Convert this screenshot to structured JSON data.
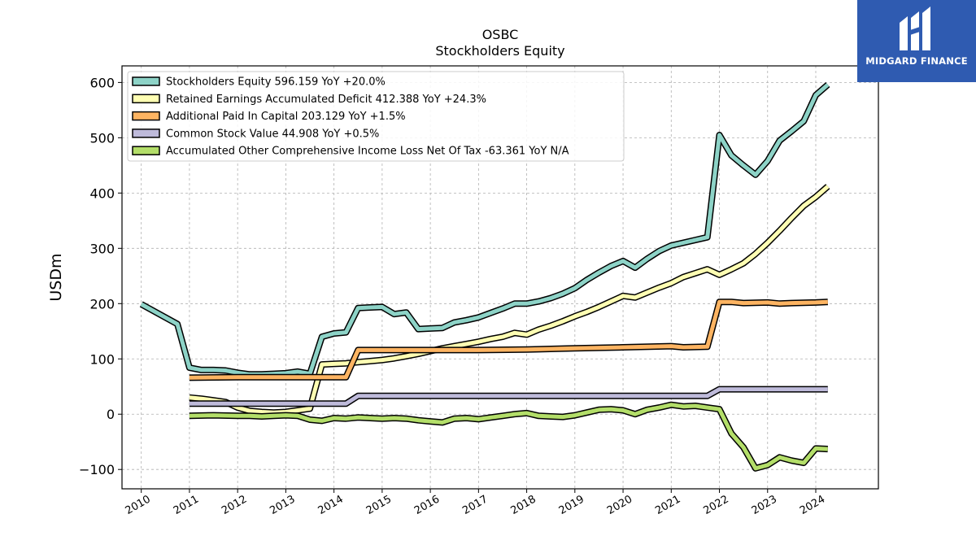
{
  "brand": {
    "name": "MIDGARD FINANCE",
    "bg_color": "#2f5bb1"
  },
  "chart_data": {
    "type": "line",
    "title": "OSBC",
    "subtitle": "Stockholders  Equity",
    "xlabel": "",
    "ylabel": "USDm",
    "xlim": [
      2009.6,
      2025.3
    ],
    "ylim": [
      -135,
      630
    ],
    "x_ticks": [
      "2010",
      "2011",
      "2012",
      "2013",
      "2014",
      "2015",
      "2016",
      "2017",
      "2018",
      "2019",
      "2020",
      "2021",
      "2022",
      "2023",
      "2024"
    ],
    "y_ticks": [
      -100,
      0,
      100,
      200,
      300,
      400,
      500,
      600
    ],
    "y_tick_labels": [
      "−100",
      "0",
      "100",
      "200",
      "300",
      "400",
      "500",
      "600"
    ],
    "grid": true,
    "legend_position": "upper-left",
    "series": [
      {
        "name": "Stockholders Equity  596.159 YoY +20.0%",
        "color": "#8dd3c7",
        "points": [
          [
            2010.0,
            199
          ],
          [
            2010.75,
            163
          ],
          [
            2011.0,
            84
          ],
          [
            2011.25,
            80
          ],
          [
            2011.5,
            80
          ],
          [
            2011.75,
            79
          ],
          [
            2012.0,
            75
          ],
          [
            2012.25,
            72
          ],
          [
            2012.5,
            72
          ],
          [
            2012.75,
            73
          ],
          [
            2013.0,
            74
          ],
          [
            2013.25,
            77
          ],
          [
            2013.5,
            73
          ],
          [
            2013.75,
            140
          ],
          [
            2014.0,
            146
          ],
          [
            2014.25,
            148
          ],
          [
            2014.5,
            192
          ],
          [
            2014.75,
            193
          ],
          [
            2015.0,
            194
          ],
          [
            2015.25,
            181
          ],
          [
            2015.5,
            184
          ],
          [
            2015.75,
            154
          ],
          [
            2016.0,
            155
          ],
          [
            2016.25,
            156
          ],
          [
            2016.5,
            166
          ],
          [
            2016.75,
            170
          ],
          [
            2017.0,
            175
          ],
          [
            2017.25,
            183
          ],
          [
            2017.5,
            191
          ],
          [
            2017.75,
            200
          ],
          [
            2018.0,
            200
          ],
          [
            2018.25,
            204
          ],
          [
            2018.5,
            210
          ],
          [
            2018.75,
            218
          ],
          [
            2019.0,
            228
          ],
          [
            2019.25,
            243
          ],
          [
            2019.5,
            256
          ],
          [
            2019.75,
            268
          ],
          [
            2020.0,
            277
          ],
          [
            2020.25,
            265
          ],
          [
            2020.5,
            281
          ],
          [
            2020.75,
            295
          ],
          [
            2021.0,
            305
          ],
          [
            2021.25,
            310
          ],
          [
            2021.5,
            315
          ],
          [
            2021.75,
            320
          ],
          [
            2022.0,
            505
          ],
          [
            2022.25,
            468
          ],
          [
            2022.5,
            450
          ],
          [
            2022.75,
            433
          ],
          [
            2023.0,
            458
          ],
          [
            2023.25,
            495
          ],
          [
            2023.5,
            512
          ],
          [
            2023.75,
            530
          ],
          [
            2024.0,
            577
          ],
          [
            2024.25,
            596
          ]
        ]
      },
      {
        "name": "Retained Earnings Accumulated Deficit  412.388 YoY +24.3%",
        "color": "#ffffb3",
        "points": [
          [
            2011.0,
            30
          ],
          [
            2011.25,
            28
          ],
          [
            2011.5,
            25
          ],
          [
            2011.75,
            22
          ],
          [
            2012.0,
            12
          ],
          [
            2012.25,
            6
          ],
          [
            2012.5,
            4
          ],
          [
            2012.75,
            3
          ],
          [
            2013.0,
            4
          ],
          [
            2013.25,
            7
          ],
          [
            2013.5,
            10
          ],
          [
            2013.75,
            90
          ],
          [
            2014.0,
            91
          ],
          [
            2014.25,
            92
          ],
          [
            2014.5,
            94
          ],
          [
            2014.75,
            96
          ],
          [
            2015.0,
            98
          ],
          [
            2015.25,
            101
          ],
          [
            2015.5,
            105
          ],
          [
            2015.75,
            109
          ],
          [
            2016.0,
            114
          ],
          [
            2016.25,
            119
          ],
          [
            2016.5,
            123
          ],
          [
            2016.75,
            127
          ],
          [
            2017.0,
            131
          ],
          [
            2017.25,
            136
          ],
          [
            2017.5,
            140
          ],
          [
            2017.75,
            147
          ],
          [
            2018.0,
            144
          ],
          [
            2018.25,
            153
          ],
          [
            2018.5,
            160
          ],
          [
            2018.75,
            168
          ],
          [
            2019.0,
            177
          ],
          [
            2019.25,
            185
          ],
          [
            2019.5,
            194
          ],
          [
            2019.75,
            204
          ],
          [
            2020.0,
            214
          ],
          [
            2020.25,
            211
          ],
          [
            2020.5,
            220
          ],
          [
            2020.75,
            229
          ],
          [
            2021.0,
            237
          ],
          [
            2021.25,
            248
          ],
          [
            2021.5,
            255
          ],
          [
            2021.75,
            262
          ],
          [
            2022.0,
            252
          ],
          [
            2022.25,
            262
          ],
          [
            2022.5,
            273
          ],
          [
            2022.75,
            290
          ],
          [
            2023.0,
            310
          ],
          [
            2023.25,
            332
          ],
          [
            2023.5,
            355
          ],
          [
            2023.75,
            377
          ],
          [
            2024.0,
            393
          ],
          [
            2024.25,
            412
          ]
        ]
      },
      {
        "name": "Additional Paid In Capital  203.129 YoY +1.5%",
        "color": "#fdb462",
        "points": [
          [
            2011.0,
            66
          ],
          [
            2012.0,
            67
          ],
          [
            2013.0,
            67
          ],
          [
            2014.0,
            67
          ],
          [
            2014.25,
            67
          ],
          [
            2014.5,
            116
          ],
          [
            2015.0,
            116
          ],
          [
            2016.0,
            116
          ],
          [
            2017.0,
            116
          ],
          [
            2018.0,
            117
          ],
          [
            2019.0,
            119
          ],
          [
            2020.0,
            121
          ],
          [
            2021.0,
            123
          ],
          [
            2021.25,
            121
          ],
          [
            2021.75,
            122
          ],
          [
            2022.0,
            203
          ],
          [
            2022.25,
            203
          ],
          [
            2022.5,
            201
          ],
          [
            2023.0,
            202
          ],
          [
            2023.25,
            200
          ],
          [
            2023.5,
            201
          ],
          [
            2024.0,
            202
          ],
          [
            2024.25,
            203
          ]
        ]
      },
      {
        "name": "Common Stock Value  44.908 YoY +0.5%",
        "color": "#bebada",
        "points": [
          [
            2011.0,
            19
          ],
          [
            2012.0,
            19
          ],
          [
            2013.0,
            19
          ],
          [
            2014.0,
            19
          ],
          [
            2014.25,
            19
          ],
          [
            2014.5,
            33
          ],
          [
            2015.0,
            33
          ],
          [
            2016.0,
            33
          ],
          [
            2017.0,
            33
          ],
          [
            2018.0,
            33
          ],
          [
            2019.0,
            33
          ],
          [
            2020.0,
            33
          ],
          [
            2021.0,
            33
          ],
          [
            2021.75,
            33
          ],
          [
            2022.0,
            45
          ],
          [
            2023.0,
            45
          ],
          [
            2024.0,
            45
          ],
          [
            2024.25,
            45
          ]
        ]
      },
      {
        "name": "Accumulated Other Comprehensive Income Loss Net Of Tax  -63.361 YoY N/A",
        "color": "#b3de69",
        "points": [
          [
            2011.0,
            -3
          ],
          [
            2011.5,
            -2
          ],
          [
            2012.0,
            -3
          ],
          [
            2012.25,
            -3
          ],
          [
            2012.5,
            -4
          ],
          [
            2012.75,
            -3
          ],
          [
            2013.0,
            -2
          ],
          [
            2013.25,
            -3
          ],
          [
            2013.5,
            -10
          ],
          [
            2013.75,
            -12
          ],
          [
            2014.0,
            -7
          ],
          [
            2014.25,
            -8
          ],
          [
            2014.5,
            -6
          ],
          [
            2014.75,
            -7
          ],
          [
            2015.0,
            -8
          ],
          [
            2015.25,
            -7
          ],
          [
            2015.5,
            -8
          ],
          [
            2015.75,
            -11
          ],
          [
            2016.0,
            -13
          ],
          [
            2016.25,
            -15
          ],
          [
            2016.5,
            -8
          ],
          [
            2016.75,
            -7
          ],
          [
            2017.0,
            -9
          ],
          [
            2017.25,
            -6
          ],
          [
            2017.5,
            -3
          ],
          [
            2017.75,
            0
          ],
          [
            2018.0,
            2
          ],
          [
            2018.25,
            -3
          ],
          [
            2018.5,
            -4
          ],
          [
            2018.75,
            -5
          ],
          [
            2019.0,
            -2
          ],
          [
            2019.25,
            3
          ],
          [
            2019.5,
            8
          ],
          [
            2019.75,
            9
          ],
          [
            2020.0,
            7
          ],
          [
            2020.25,
            0
          ],
          [
            2020.5,
            8
          ],
          [
            2020.75,
            12
          ],
          [
            2021.0,
            17
          ],
          [
            2021.25,
            14
          ],
          [
            2021.5,
            15
          ],
          [
            2021.75,
            12
          ],
          [
            2022.0,
            9
          ],
          [
            2022.25,
            -35
          ],
          [
            2022.5,
            -60
          ],
          [
            2022.75,
            -98
          ],
          [
            2023.0,
            -92
          ],
          [
            2023.25,
            -78
          ],
          [
            2023.5,
            -84
          ],
          [
            2023.75,
            -88
          ],
          [
            2024.0,
            -62
          ],
          [
            2024.25,
            -63
          ]
        ]
      }
    ]
  }
}
